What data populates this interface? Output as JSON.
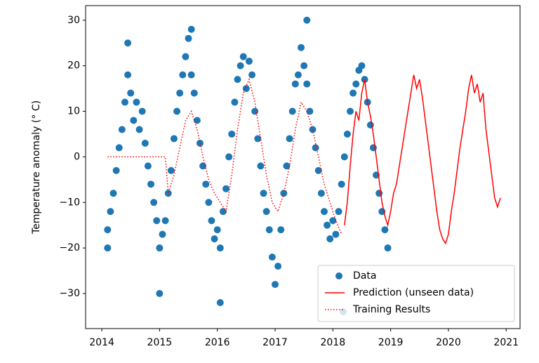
{
  "chart_data": {
    "type": "scatter",
    "ylabel": "Temperature anomaly (° C)",
    "xlim": [
      2013.72,
      2021.24
    ],
    "ylim": [
      -37.7,
      33.2
    ],
    "xticks": [
      2014,
      2015,
      2016,
      2017,
      2018,
      2019,
      2020,
      2021
    ],
    "yticks": [
      {
        "value": -30,
        "label": "−30"
      },
      {
        "value": -20,
        "label": "−20"
      },
      {
        "value": -10,
        "label": "−10"
      },
      0,
      10,
      20,
      30
    ],
    "legend": "lower right",
    "series": [
      {
        "name": "Data",
        "kind": "scatter",
        "color": "#1f77b4",
        "x": [
          2014.1,
          2014.15,
          2014.2,
          2014.25,
          2014.3,
          2014.35,
          2014.4,
          2014.45,
          2014.5,
          2014.55,
          2014.6,
          2014.65,
          2014.7,
          2014.75,
          2014.8,
          2014.85,
          2014.9,
          2014.95,
          2015.0,
          2015.05,
          2015.1,
          2015.15,
          2015.2,
          2015.25,
          2015.3,
          2015.35,
          2015.4,
          2015.45,
          2015.5,
          2015.55,
          2015.6,
          2015.65,
          2015.7,
          2015.75,
          2015.8,
          2015.85,
          2015.9,
          2015.95,
          2016.0,
          2016.05,
          2016.1,
          2016.15,
          2016.2,
          2016.25,
          2016.3,
          2016.35,
          2016.4,
          2016.45,
          2016.5,
          2016.55,
          2016.6,
          2016.65,
          2016.7,
          2016.75,
          2016.8,
          2016.85,
          2016.9,
          2016.95,
          2017.0,
          2017.05,
          2017.1,
          2017.15,
          2017.2,
          2017.25,
          2017.3,
          2017.35,
          2017.4,
          2017.45,
          2017.5,
          2017.55,
          2017.6,
          2017.65,
          2017.7,
          2017.75,
          2017.8,
          2017.85,
          2017.9,
          2017.95,
          2018.0,
          2018.05,
          2018.1,
          2018.15,
          2018.2,
          2018.25,
          2018.3,
          2018.35,
          2018.4,
          2018.45,
          2018.5,
          2018.55,
          2018.6,
          2018.65,
          2018.7,
          2018.75,
          2018.8,
          2018.85,
          2018.9,
          2018.95,
          2015.0,
          2016.05,
          2017.55,
          2015.55,
          2018.18,
          2014.1,
          2014.45
        ],
        "values": [
          -16,
          -12,
          -8,
          -3,
          2,
          6,
          12,
          18,
          14,
          8,
          12,
          6,
          10,
          3,
          -2,
          -6,
          -10,
          -14,
          -20,
          -17,
          -14,
          -8,
          -3,
          4,
          10,
          14,
          18,
          22,
          26,
          18,
          14,
          8,
          3,
          -2,
          -6,
          -10,
          -14,
          -18,
          -16,
          -20,
          -12,
          -7,
          0,
          5,
          12,
          17,
          20,
          22,
          15,
          21,
          18,
          10,
          4,
          -2,
          -8,
          -12,
          -16,
          -22,
          -28,
          -24,
          -16,
          -8,
          -2,
          4,
          10,
          16,
          18,
          24,
          20,
          16,
          10,
          6,
          2,
          -3,
          -8,
          -12,
          -15,
          -18,
          -14,
          -17,
          -12,
          -6,
          0,
          5,
          10,
          14,
          16,
          19,
          20,
          17,
          12,
          7,
          2,
          -4,
          -8,
          -12,
          -16,
          -20,
          -30,
          -32,
          30,
          28,
          -34,
          -20,
          25
        ]
      },
      {
        "name": "Prediction (unseen data)",
        "kind": "line",
        "color": "#ff0000",
        "x": [
          2018.2,
          2018.25,
          2018.3,
          2018.35,
          2018.4,
          2018.45,
          2018.5,
          2018.55,
          2018.6,
          2018.65,
          2018.7,
          2018.75,
          2018.8,
          2018.85,
          2018.9,
          2018.95,
          2019.0,
          2019.05,
          2019.1,
          2019.15,
          2019.2,
          2019.25,
          2019.3,
          2019.35,
          2019.4,
          2019.45,
          2019.5,
          2019.55,
          2019.6,
          2019.65,
          2019.7,
          2019.75,
          2019.8,
          2019.85,
          2019.9,
          2019.95,
          2020.0,
          2020.05,
          2020.1,
          2020.15,
          2020.2,
          2020.25,
          2020.3,
          2020.35,
          2020.4,
          2020.45,
          2020.5,
          2020.55,
          2020.6,
          2020.65,
          2020.7,
          2020.75,
          2020.8,
          2020.85,
          2020.9
        ],
        "values": [
          -15,
          -10,
          -2,
          5,
          10,
          8,
          14,
          17,
          12,
          9,
          5,
          0,
          -5,
          -10,
          -13,
          -15,
          -12,
          -8,
          -6,
          -2,
          2,
          6,
          10,
          14,
          18,
          15,
          17,
          13,
          8,
          3,
          -2,
          -7,
          -12,
          -16,
          -18,
          -19,
          -17,
          -12,
          -8,
          -3,
          2,
          6,
          10,
          15,
          18,
          14,
          16,
          12,
          14,
          6,
          1,
          -4,
          -9,
          -11,
          -9
        ]
      },
      {
        "name": "Training Results",
        "kind": "line",
        "linestyle": "dotted",
        "color": "#ff0000",
        "x": [
          2014.1,
          2014.5,
          2015.0,
          2015.1,
          2015.15,
          2015.25,
          2015.35,
          2015.45,
          2015.55,
          2015.65,
          2015.75,
          2015.85,
          2015.95,
          2016.05,
          2016.15,
          2016.25,
          2016.35,
          2016.45,
          2016.55,
          2016.65,
          2016.75,
          2016.85,
          2016.95,
          2017.05,
          2017.15,
          2017.25,
          2017.35,
          2017.45,
          2017.55,
          2017.65,
          2017.75,
          2017.85,
          2017.95,
          2018.05,
          2018.15
        ],
        "values": [
          0,
          0,
          0,
          0,
          -8,
          -4,
          2,
          8,
          10,
          6,
          0,
          -5,
          -8,
          -10,
          -12,
          -4,
          6,
          14,
          17,
          12,
          4,
          -4,
          -10,
          -12,
          -8,
          -2,
          6,
          12,
          10,
          6,
          0,
          -6,
          -10,
          -14,
          -17
        ]
      }
    ]
  }
}
